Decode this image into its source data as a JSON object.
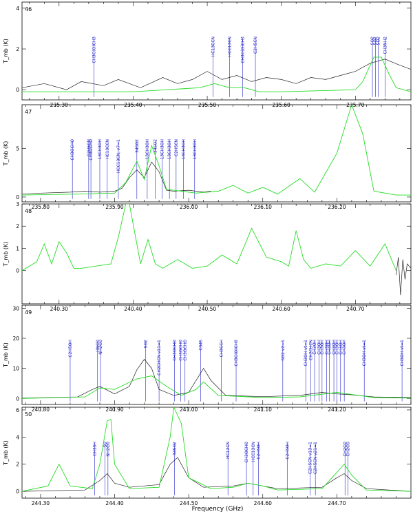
{
  "figure": {
    "xlabel": "Frequency (GHz)"
  },
  "colors": {
    "observed": "#222222",
    "model": "#22dd22",
    "lines": "#2222cc",
    "frame": "#000000"
  },
  "chart_data": [
    {
      "type": "line",
      "panel_label": "46",
      "ylabel": "T_mb (K)",
      "xlim": [
        235.25,
        235.775
      ],
      "ylim": [
        -0.5,
        4.3
      ],
      "xticks": [
        235.3,
        235.4,
        235.5,
        235.6,
        235.7
      ],
      "yticks": [
        0,
        2,
        4
      ],
      "series": [
        {
          "role": "observed",
          "x": [
            235.25,
            235.28,
            235.31,
            235.33,
            235.36,
            235.38,
            235.41,
            235.44,
            235.46,
            235.48,
            235.5,
            235.52,
            235.54,
            235.56,
            235.58,
            235.6,
            235.62,
            235.64,
            235.66,
            235.68,
            235.7,
            235.72,
            235.74,
            235.76,
            235.775
          ],
          "y": [
            0.1,
            0.3,
            0.0,
            0.4,
            0.2,
            0.5,
            0.1,
            0.6,
            0.3,
            0.5,
            0.9,
            0.5,
            0.7,
            0.4,
            0.6,
            0.5,
            0.3,
            0.6,
            0.5,
            0.7,
            0.9,
            1.3,
            1.5,
            1.2,
            1.0
          ]
        },
        {
          "role": "model",
          "x": [
            235.25,
            235.4,
            235.49,
            235.51,
            235.53,
            235.55,
            235.57,
            235.6,
            235.7,
            235.71,
            235.72,
            235.725,
            235.735,
            235.745,
            235.755,
            235.775
          ],
          "y": [
            -0.1,
            -0.1,
            0.1,
            0.3,
            0.1,
            0.1,
            -0.1,
            -0.1,
            0.0,
            0.4,
            1.2,
            1.6,
            1.6,
            0.8,
            0.1,
            -0.1
          ]
        }
      ],
      "lines": [
        {
          "x": 235.347,
          "label": "CH3C(O)CH3"
        },
        {
          "x": 235.508,
          "label": "HC13CCN"
        },
        {
          "x": 235.53,
          "label": "HCC13CN"
        },
        {
          "x": 235.548,
          "label": "CH3C(O)CH3"
        },
        {
          "x": 235.565,
          "label": "C2H5CN"
        },
        {
          "x": 235.723,
          "label": "SO2"
        },
        {
          "x": 235.727,
          "label": "SO2"
        },
        {
          "x": 235.731,
          "label": "SO2"
        },
        {
          "x": 235.74,
          "label": "CH3NH2"
        }
      ]
    },
    {
      "type": "line",
      "panel_label": "47",
      "ylabel": "T_mb (K)",
      "xlim": [
        235.775,
        236.3
      ],
      "ylim": [
        -0.5,
        9.5
      ],
      "xticks": [
        235.8,
        235.9,
        236.0,
        236.1,
        236.2
      ],
      "yticks": [
        0,
        5
      ],
      "series": [
        {
          "role": "observed",
          "x": [
            235.775,
            235.8,
            235.84,
            235.86,
            235.88,
            235.9,
            235.91,
            235.92,
            235.93,
            235.94,
            235.95,
            235.96,
            235.97,
            235.98,
            236.0,
            236.02,
            236.03
          ],
          "y": [
            0.3,
            0.4,
            0.5,
            0.6,
            0.5,
            0.6,
            0.9,
            2.0,
            2.8,
            2.0,
            3.6,
            2.6,
            0.7,
            0.6,
            0.7,
            0.5,
            0.6
          ]
        },
        {
          "role": "model",
          "x": [
            235.775,
            235.85,
            235.9,
            235.915,
            235.93,
            235.94,
            235.95,
            235.96,
            235.97,
            235.99,
            236.01,
            236.04,
            236.06,
            236.08,
            236.1,
            236.12,
            236.15,
            236.17,
            236.2,
            236.22,
            236.235,
            236.25,
            236.28,
            236.3
          ],
          "y": [
            0.2,
            0.3,
            0.4,
            1.5,
            3.7,
            1.8,
            5.3,
            3.2,
            0.8,
            0.6,
            0.4,
            0.6,
            1.2,
            0.4,
            1.0,
            0.3,
            1.9,
            0.5,
            4.5,
            9.5,
            6.5,
            0.6,
            0.2,
            0.2
          ]
        }
      ],
      "lines": [
        {
          "x": 235.843,
          "label": "CH3OCHO"
        },
        {
          "x": 235.865,
          "label": "C2H5CN"
        },
        {
          "x": 235.868,
          "label": "CH3OCHO"
        },
        {
          "x": 235.88,
          "label": "13CH3OH"
        },
        {
          "x": 235.89,
          "label": "HC13CCN"
        },
        {
          "x": 235.905,
          "label": "HCC13CN, v7=1"
        },
        {
          "x": 235.93,
          "label": "34SO2"
        },
        {
          "x": 235.944,
          "label": "13CH3OH"
        },
        {
          "x": 235.955,
          "label": "34SO2"
        },
        {
          "x": 235.964,
          "label": "13CH3OH"
        },
        {
          "x": 235.974,
          "label": "13CH3OH"
        },
        {
          "x": 235.983,
          "label": "C2H5CN"
        },
        {
          "x": 235.993,
          "label": "13CH3OH"
        },
        {
          "x": 236.008,
          "label": "13CH3OH"
        }
      ]
    },
    {
      "type": "line",
      "panel_label": "48",
      "ylabel": "T_mb (K)",
      "xlim": [
        240.25,
        240.775
      ],
      "ylim": [
        -1.5,
        3.0
      ],
      "xticks": [
        240.3,
        240.4,
        240.5,
        240.6,
        240.7
      ],
      "yticks": [
        0,
        1,
        2,
        3
      ],
      "series": [
        {
          "role": "observed",
          "x": [
            240.755,
            240.758,
            240.761,
            240.764,
            240.767,
            240.77,
            240.775
          ],
          "y": [
            -0.2,
            0.6,
            -1.1,
            0.5,
            -0.4,
            0.3,
            0.1
          ]
        },
        {
          "role": "model",
          "x": [
            240.25,
            240.27,
            240.28,
            240.29,
            240.3,
            240.31,
            240.32,
            240.33,
            240.35,
            240.37,
            240.38,
            240.39,
            240.395,
            240.41,
            240.42,
            240.43,
            240.44,
            240.46,
            240.48,
            240.5,
            240.52,
            240.54,
            240.56,
            240.58,
            240.6,
            240.61,
            240.62,
            240.63,
            240.64,
            240.66,
            240.68,
            240.7,
            240.72,
            240.74,
            240.755
          ],
          "y": [
            0.0,
            0.4,
            1.2,
            0.3,
            1.3,
            0.8,
            0.1,
            0.1,
            0.2,
            0.3,
            1.5,
            3.0,
            3.0,
            0.3,
            1.4,
            0.3,
            0.1,
            0.5,
            0.1,
            0.2,
            0.7,
            0.3,
            1.9,
            0.6,
            0.4,
            0.2,
            1.8,
            0.5,
            0.1,
            0.3,
            0.2,
            0.9,
            0.2,
            1.2,
            0.0
          ]
        }
      ],
      "lines": []
    },
    {
      "type": "line",
      "panel_label": "49",
      "ylabel": "T_mb (K)",
      "xlim": [
        240.775,
        241.3
      ],
      "ylim": [
        -2,
        31
      ],
      "xticks": [
        240.8,
        240.9,
        241.0,
        241.1,
        241.2
      ],
      "yticks": [
        0,
        10,
        20,
        30
      ],
      "series": [
        {
          "role": "observed",
          "x": [
            240.775,
            240.85,
            240.87,
            240.88,
            240.9,
            240.92,
            240.93,
            240.94,
            240.95,
            240.96,
            240.98,
            241.0,
            241.01,
            241.02,
            241.03,
            241.05,
            241.1,
            241.15,
            241.18,
            241.2,
            241.22,
            241.25,
            241.3
          ],
          "y": [
            0.1,
            0.5,
            3.0,
            4.0,
            1.5,
            4.0,
            9.5,
            13.0,
            10.0,
            3.0,
            1.0,
            2.0,
            6.0,
            10.0,
            6.0,
            1.0,
            0.6,
            1.0,
            2.0,
            1.5,
            1.2,
            0.5,
            0.3
          ]
        },
        {
          "role": "model",
          "x": [
            240.775,
            240.86,
            240.88,
            240.9,
            240.93,
            240.95,
            240.97,
            240.99,
            241.01,
            241.02,
            241.04,
            241.1,
            241.15,
            241.2,
            241.25,
            241.3
          ],
          "y": [
            0.0,
            0.5,
            3.5,
            3.0,
            6.5,
            7.5,
            4.0,
            1.0,
            3.0,
            5.5,
            1.0,
            0.3,
            0.5,
            2.0,
            0.3,
            0.1
          ]
        }
      ],
      "lines": [
        {
          "x": 240.84,
          "label": "C2H5OH"
        },
        {
          "x": 240.877,
          "label": "HNCO"
        },
        {
          "x": 240.881,
          "label": "NH2CO"
        },
        {
          "x": 240.942,
          "label": "SO2"
        },
        {
          "x": 240.96,
          "label": "CH2CHCN v11=1"
        },
        {
          "x": 240.981,
          "label": "CH3OCHO"
        },
        {
          "x": 240.989,
          "label": "CH3OCHO"
        },
        {
          "x": 240.995,
          "label": "CH3OCHO"
        },
        {
          "x": 241.016,
          "label": "C34S"
        },
        {
          "x": 241.044,
          "label": "CH3CCH"
        },
        {
          "x": 241.064,
          "label": "CH3C(O)CH3"
        },
        {
          "x": 241.127,
          "label": "SO2 v2=1"
        },
        {
          "x": 241.158,
          "label": "CH3OH vt=1"
        },
        {
          "x": 241.165,
          "label": "CH2CHCN"
        },
        {
          "x": 241.17,
          "label": "CH3OH"
        },
        {
          "x": 241.176,
          "label": "CH3OH"
        },
        {
          "x": 241.18,
          "label": "CH3OH"
        },
        {
          "x": 241.186,
          "label": "CH3OH"
        },
        {
          "x": 241.19,
          "label": "CH3OH"
        },
        {
          "x": 241.196,
          "label": "CH3OH"
        },
        {
          "x": 241.2,
          "label": "CH3OH"
        },
        {
          "x": 241.205,
          "label": "CH3OH"
        },
        {
          "x": 241.21,
          "label": "CH3OH"
        },
        {
          "x": 241.237,
          "label": "CH3OH vt=1"
        },
        {
          "x": 241.288,
          "label": "CH3OH vt=1"
        }
      ]
    },
    {
      "type": "line",
      "panel_label": "50",
      "ylabel": "T_mb (K)",
      "xlim": [
        244.275,
        244.8
      ],
      "ylim": [
        -0.5,
        6.2
      ],
      "xticks": [
        244.3,
        244.4,
        244.5,
        244.6,
        244.7
      ],
      "yticks": [
        0,
        2,
        4,
        6
      ],
      "series": [
        {
          "role": "observed",
          "x": [
            244.275,
            244.36,
            244.38,
            244.39,
            244.4,
            244.42,
            244.46,
            244.475,
            244.485,
            244.5,
            244.52,
            244.56,
            244.58,
            244.6,
            244.62,
            244.68,
            244.7,
            244.71,
            244.72,
            244.74,
            244.8
          ],
          "y": [
            0.0,
            0.1,
            0.8,
            1.3,
            0.6,
            0.3,
            0.5,
            2.0,
            2.5,
            1.0,
            0.3,
            0.4,
            0.6,
            0.4,
            0.2,
            0.3,
            1.0,
            1.3,
            0.8,
            0.2,
            0.0
          ]
        },
        {
          "role": "model",
          "x": [
            244.275,
            244.31,
            244.325,
            244.34,
            244.37,
            244.38,
            244.39,
            244.395,
            244.4,
            244.42,
            244.46,
            244.475,
            244.48,
            244.49,
            244.5,
            244.53,
            244.56,
            244.58,
            244.6,
            244.62,
            244.68,
            244.7,
            244.71,
            244.72,
            244.74,
            244.8
          ],
          "y": [
            0.0,
            0.4,
            2.0,
            0.4,
            0.2,
            2.0,
            5.2,
            5.3,
            2.0,
            0.2,
            0.3,
            4.0,
            6.2,
            5.0,
            1.0,
            0.2,
            0.3,
            0.6,
            0.4,
            0.1,
            0.2,
            1.4,
            2.0,
            1.2,
            0.1,
            0.0
          ]
        }
      ],
      "lines": [
        {
          "x": 244.373,
          "label": "CH3SH"
        },
        {
          "x": 244.387,
          "label": "SO"
        },
        {
          "x": 244.391,
          "label": "NH2CO"
        },
        {
          "x": 244.481,
          "label": "34SO2"
        },
        {
          "x": 244.553,
          "label": "HC13CN"
        },
        {
          "x": 244.578,
          "label": "CH3OCHO"
        },
        {
          "x": 244.587,
          "label": "HCC13CN"
        },
        {
          "x": 244.594,
          "label": "C2H5OH"
        },
        {
          "x": 244.633,
          "label": "C2H5OH"
        },
        {
          "x": 244.664,
          "label": "C2H5CN v13=1"
        },
        {
          "x": 244.671,
          "label": "C2H5CN v21=1"
        },
        {
          "x": 244.711,
          "label": "CH2CO"
        },
        {
          "x": 244.715,
          "label": "CH2CO"
        }
      ]
    }
  ]
}
